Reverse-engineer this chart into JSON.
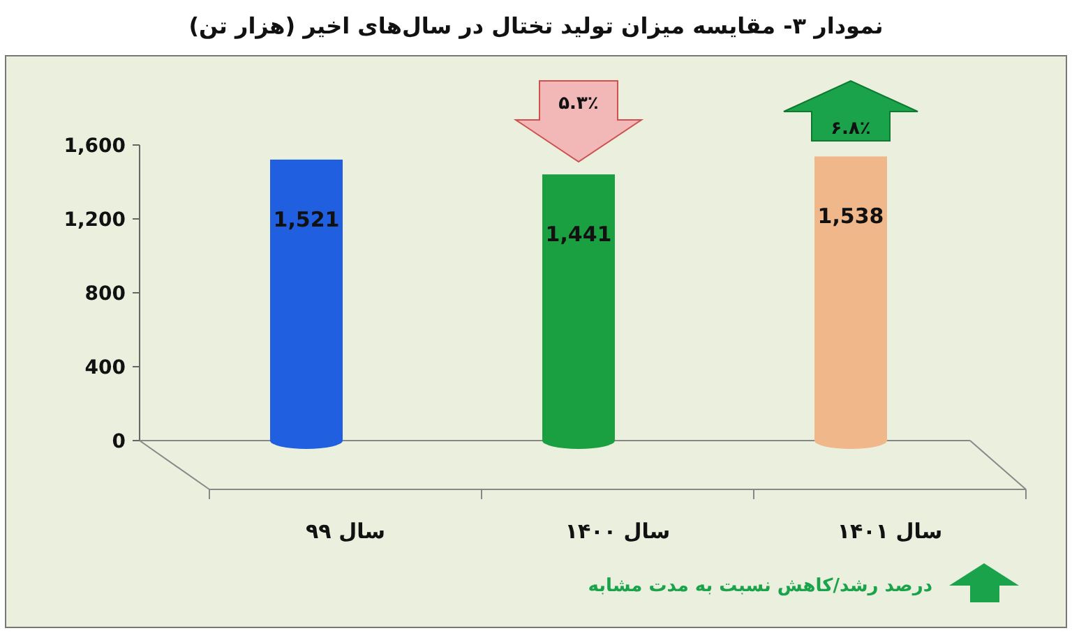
{
  "chart_data": {
    "type": "bar",
    "title": "نمودار ۳- مقایسه میزان تولید تختال در سال‌های اخیر (هزار تن)",
    "categories": [
      "سال ۹۹",
      "سال ۱۴۰۰",
      "سال ۱۴۰۱"
    ],
    "values": [
      1521,
      1441,
      1538
    ],
    "colors": [
      "#1f5fe0",
      "#1aa040",
      "#f0b88a"
    ],
    "value_labels": [
      "1,521",
      "1,441",
      "1,538"
    ],
    "ylim": [
      0,
      1600
    ],
    "yticks": [
      0,
      400,
      800,
      {
        "value": 1200,
        "label": "1,200"
      },
      {
        "value": 1600,
        "label": "1,600"
      }
    ],
    "annotations": [
      "۵.۳٪",
      "۶.۸٪",
      "درصد رشد/کاهش نسبت به مدت مشابه"
    ]
  }
}
